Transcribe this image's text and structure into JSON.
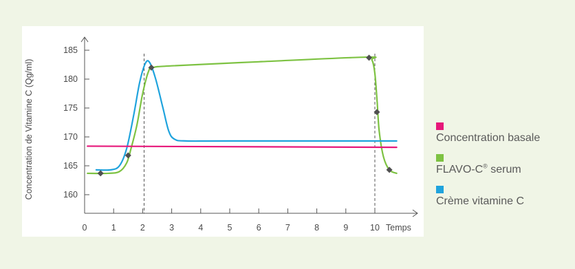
{
  "chart_data": {
    "type": "line",
    "xlabel": "Temps",
    "ylabel": "Concentration de Vitamine C (Qg/ml)",
    "x_ticks": [
      "0",
      "1",
      "2",
      "3",
      "4",
      "5",
      "6",
      "7",
      "8",
      "9",
      "10"
    ],
    "y_ticks": [
      "160",
      "165",
      "170",
      "175",
      "180",
      "185"
    ],
    "xlim": [
      0,
      10.8
    ],
    "ylim": [
      157,
      187
    ],
    "vertical_reference_lines": [
      2.05,
      10.0
    ],
    "series": [
      {
        "name": "Concentration basale",
        "color": "#e6177a",
        "points": [
          [
            0.1,
            168.4
          ],
          [
            10.75,
            168.2
          ]
        ]
      },
      {
        "name": "FLAVO-C® serum",
        "color": "#7dc242",
        "points": [
          [
            0.1,
            163.7
          ],
          [
            0.8,
            163.7
          ],
          [
            1.2,
            164.0
          ],
          [
            1.45,
            165.5
          ],
          [
            1.6,
            168.0
          ],
          [
            1.8,
            172.0
          ],
          [
            2.0,
            177.5
          ],
          [
            2.2,
            181.3
          ],
          [
            2.35,
            182.0
          ],
          [
            3.0,
            182.3
          ],
          [
            6.0,
            183.0
          ],
          [
            9.7,
            183.8
          ],
          [
            9.9,
            183.3
          ],
          [
            10.0,
            181.0
          ],
          [
            10.08,
            176.0
          ],
          [
            10.15,
            171.0
          ],
          [
            10.3,
            166.5
          ],
          [
            10.5,
            164.3
          ],
          [
            10.75,
            163.7
          ]
        ],
        "markers": [
          [
            0.55,
            163.7
          ],
          [
            1.5,
            166.8
          ],
          [
            2.3,
            182.0
          ],
          [
            9.8,
            183.7
          ],
          [
            10.07,
            174.3
          ],
          [
            10.5,
            164.3
          ]
        ]
      },
      {
        "name": "Crème vitamine C",
        "color": "#1fa3dd",
        "points": [
          [
            0.4,
            164.3
          ],
          [
            0.9,
            164.3
          ],
          [
            1.2,
            165.0
          ],
          [
            1.45,
            168.0
          ],
          [
            1.7,
            174.0
          ],
          [
            1.9,
            179.5
          ],
          [
            2.1,
            182.8
          ],
          [
            2.25,
            182.8
          ],
          [
            2.45,
            180.0
          ],
          [
            2.7,
            175.0
          ],
          [
            2.9,
            171.0
          ],
          [
            3.1,
            169.6
          ],
          [
            3.5,
            169.3
          ],
          [
            5.0,
            169.3
          ],
          [
            10.75,
            169.3
          ]
        ]
      }
    ]
  },
  "legend": {
    "items": [
      {
        "label": "Concentration basale",
        "color": "#e6177a"
      },
      {
        "label": "FLAVO-C",
        "sup": "®",
        "suffix": " serum",
        "color": "#7dc242"
      },
      {
        "label": "Crème vitamine C",
        "color": "#1fa3dd"
      }
    ]
  }
}
